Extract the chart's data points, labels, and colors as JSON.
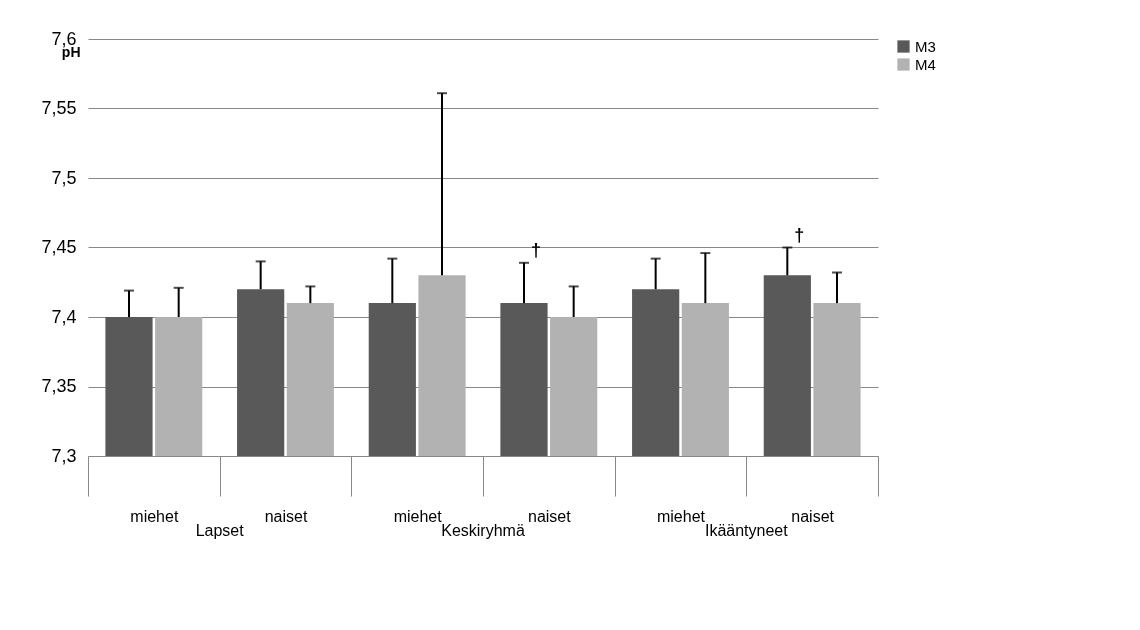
{
  "chart_data": {
    "type": "bar",
    "ylabel": "pH",
    "categories": [
      "miehet",
      "naiset",
      "miehet",
      "naiset",
      "miehet",
      "naiset"
    ],
    "series": [
      {
        "name": "M3",
        "color": "#595959",
        "values": [
          7.4,
          7.42,
          7.41,
          7.41,
          7.42,
          7.43
        ],
        "errors": [
          [
            7.4,
            7.419
          ],
          [
            7.42,
            7.44
          ],
          [
            7.41,
            7.442
          ],
          [
            7.41,
            7.439
          ],
          [
            7.42,
            7.442
          ],
          [
            7.43,
            7.45
          ]
        ],
        "value_labels": [
          null,
          null,
          null,
          "†",
          null,
          "†"
        ]
      },
      {
        "name": "M4",
        "color": "#b2b2b2",
        "values": [
          7.4,
          7.41,
          7.43,
          7.4,
          7.41,
          7.41
        ],
        "errors": [
          [
            7.4,
            7.421
          ],
          [
            7.41,
            7.422
          ],
          [
            7.43,
            7.561
          ],
          [
            7.4,
            7.422
          ],
          [
            7.41,
            7.446
          ],
          [
            7.41,
            7.432
          ]
        ]
      }
    ],
    "annotations": [
      "Lapset",
      "Keskiryhmä",
      "Ikääntyneet"
    ],
    "ylim": [
      7.3,
      7.6
    ],
    "yticks": [
      {
        "value": 7.3,
        "label": "7,3"
      },
      {
        "value": 7.35,
        "label": "7,35"
      },
      {
        "value": 7.4,
        "label": "7,4"
      },
      {
        "value": 7.45,
        "label": "7,45"
      },
      {
        "value": 7.5,
        "label": "7,5"
      },
      {
        "value": 7.55,
        "label": "7,55"
      },
      {
        "value": 7.6,
        "label": "7,6"
      }
    ],
    "grid": "y",
    "legend": "right"
  }
}
